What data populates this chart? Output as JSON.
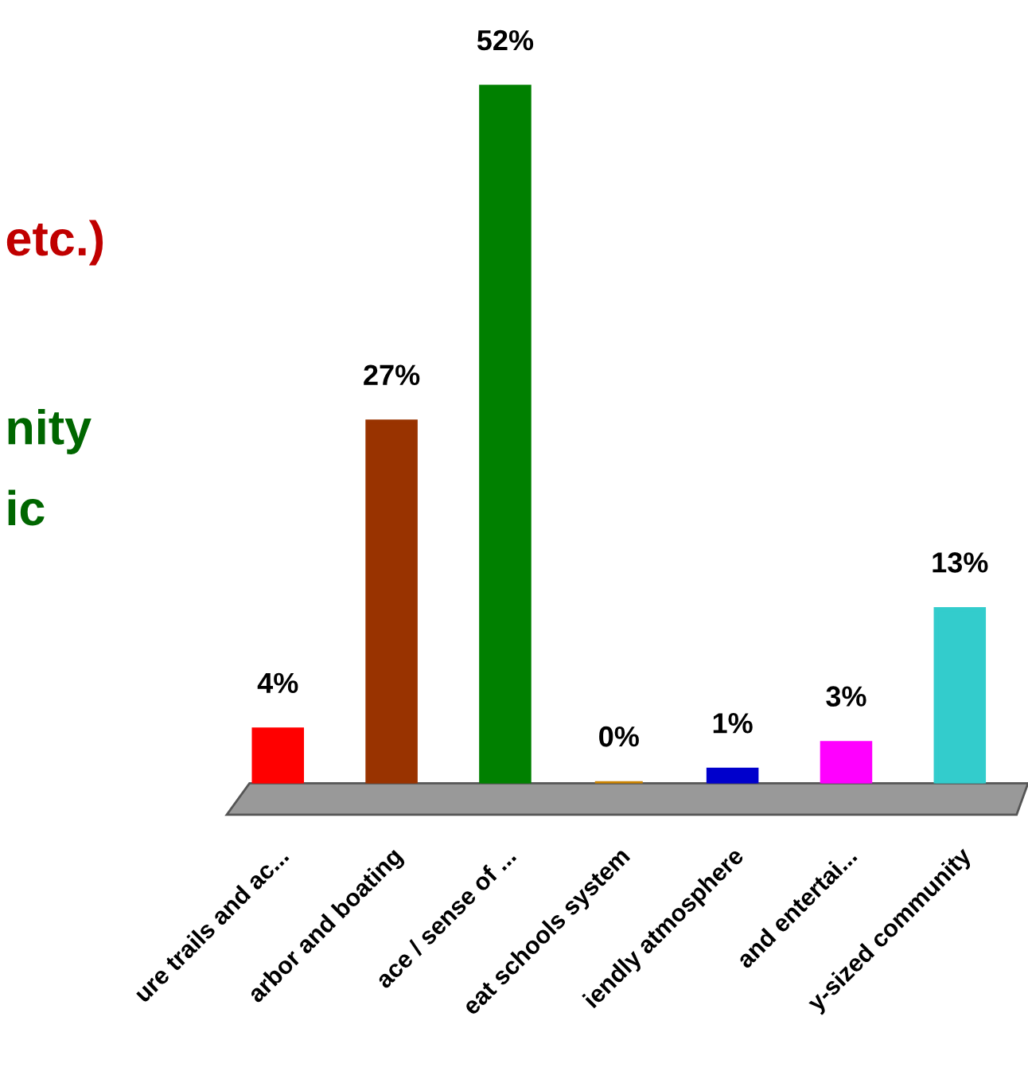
{
  "chart_data": {
    "type": "bar",
    "categories": [
      "ure trails and ac...",
      "arbor and boating",
      "ace / sense of ...",
      "eat schools system",
      "iendly atmosphere",
      "and entertai...",
      "y-sized community"
    ],
    "values": [
      4,
      27,
      52,
      0,
      1,
      3,
      13
    ],
    "colors": [
      "#ff0000",
      "#993300",
      "#008000",
      "#cc8400",
      "#0000cc",
      "#ff00ff",
      "#33cccc"
    ],
    "value_labels": [
      "4%",
      "27%",
      "52%",
      "0%",
      "1%",
      "3%",
      "13%"
    ],
    "annotations": [
      "etc.)",
      "nity",
      "ic"
    ]
  }
}
